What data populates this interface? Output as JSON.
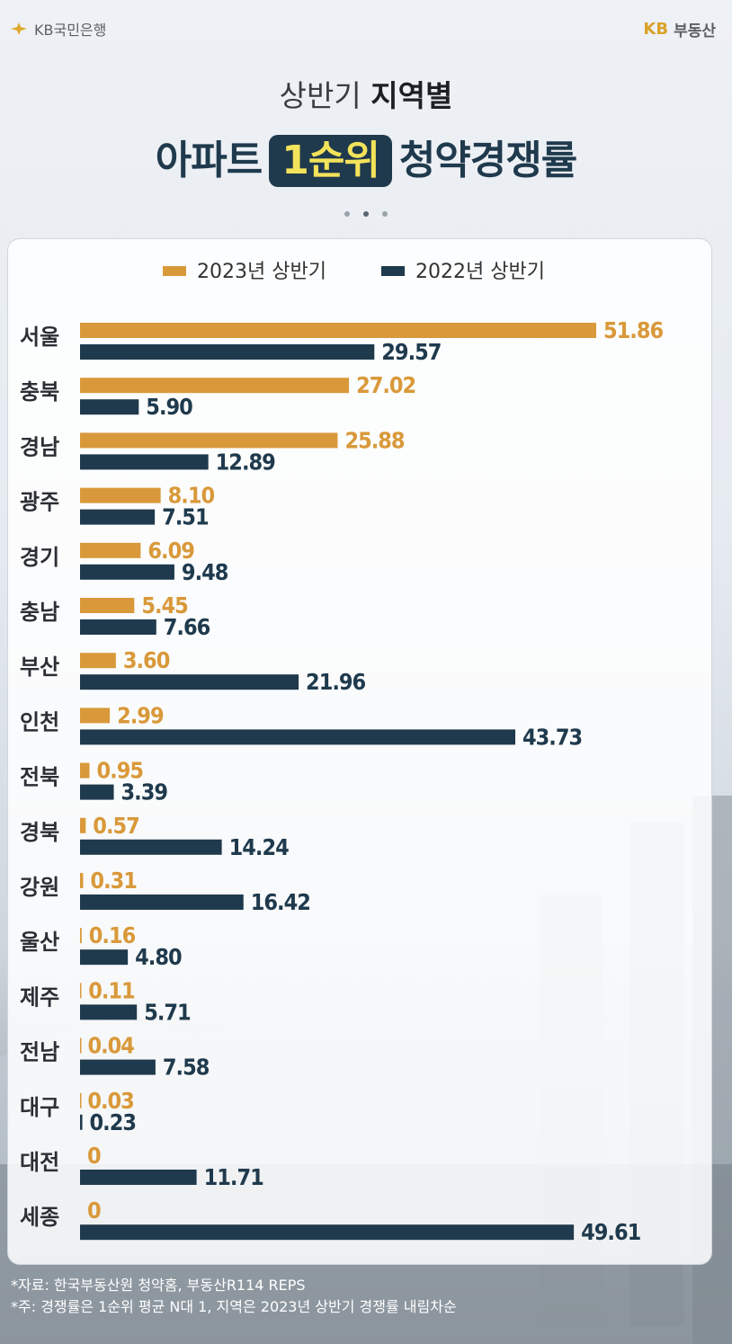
{
  "header": {
    "brand_left": "KB국민은행",
    "brand_right_kb": "KB",
    "brand_right": "부동산",
    "title_line1_light": "상반기",
    "title_line1_bold": "지역별",
    "title_line2_before": "아파트",
    "title_line2_highlight": "1순위",
    "title_line2_after": "청약경쟁률"
  },
  "colors": {
    "series_2023": "#d9993a",
    "series_2022": "#1f3a4d",
    "title": "#1f3a4d",
    "highlight_text": "#f3e35a"
  },
  "chart_data": {
    "type": "bar",
    "orientation": "horizontal",
    "legend_position": "top",
    "grid": false,
    "xlim": [
      0,
      55
    ],
    "categories": [
      "서울",
      "충북",
      "경남",
      "광주",
      "경기",
      "충남",
      "부산",
      "인천",
      "전북",
      "경북",
      "강원",
      "울산",
      "제주",
      "전남",
      "대구",
      "대전",
      "세종"
    ],
    "series": [
      {
        "name": "2023년 상반기",
        "values": [
          51.86,
          27.02,
          25.88,
          8.1,
          6.09,
          5.45,
          3.6,
          2.99,
          0.95,
          0.57,
          0.31,
          0.16,
          0.11,
          0.04,
          0.03,
          0,
          0
        ],
        "labels": [
          "51.86",
          "27.02",
          "25.88",
          "8.10",
          "6.09",
          "5.45",
          "3.60",
          "2.99",
          "0.95",
          "0.57",
          "0.31",
          "0.16",
          "0.11",
          "0.04",
          "0.03",
          "0",
          "0"
        ]
      },
      {
        "name": "2022년 상반기",
        "values": [
          29.57,
          5.9,
          12.89,
          7.51,
          9.48,
          7.66,
          21.96,
          43.73,
          3.39,
          14.24,
          16.42,
          4.8,
          5.71,
          7.58,
          0.23,
          11.71,
          49.61
        ],
        "labels": [
          "29.57",
          "5.90",
          "12.89",
          "7.51",
          "9.48",
          "7.66",
          "21.96",
          "43.73",
          "3.39",
          "14.24",
          "16.42",
          "4.80",
          "5.71",
          "7.58",
          "0.23",
          "11.71",
          "49.61"
        ]
      }
    ]
  },
  "footnotes": [
    "*자료: 한국부동산원 청약홈, 부동산R114 REPS",
    "*주: 경쟁률은 1순위 평균 N대 1, 지역은 2023년 상반기 경쟁률 내림차순"
  ]
}
